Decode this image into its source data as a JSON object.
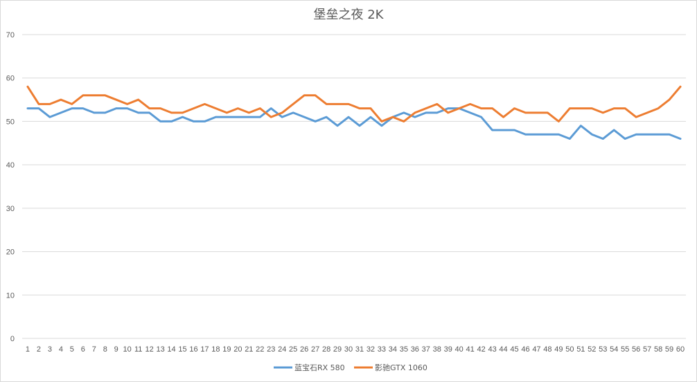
{
  "chart_data": {
    "type": "line",
    "title": "堡垒之夜 2K",
    "xlabel": "",
    "ylabel": "",
    "ylim": [
      0,
      70
    ],
    "yticks": [
      0,
      10,
      20,
      30,
      40,
      50,
      60,
      70
    ],
    "grid": true,
    "legend_position": "bottom",
    "x": [
      1,
      2,
      3,
      4,
      5,
      6,
      7,
      8,
      9,
      10,
      11,
      12,
      13,
      14,
      15,
      16,
      17,
      18,
      19,
      20,
      21,
      22,
      23,
      24,
      25,
      26,
      27,
      28,
      29,
      30,
      31,
      32,
      33,
      34,
      35,
      36,
      37,
      38,
      39,
      40,
      41,
      42,
      43,
      44,
      45,
      46,
      47,
      48,
      49,
      50,
      51,
      52,
      53,
      54,
      55,
      56,
      57,
      58,
      59,
      60
    ],
    "series": [
      {
        "name": "蓝宝石RX 580",
        "color": "#5b9bd5",
        "values": [
          53,
          53,
          51,
          52,
          53,
          53,
          52,
          52,
          53,
          53,
          52,
          52,
          50,
          50,
          51,
          50,
          50,
          51,
          51,
          51,
          51,
          51,
          53,
          51,
          52,
          51,
          50,
          51,
          49,
          51,
          49,
          51,
          49,
          51,
          52,
          51,
          52,
          52,
          53,
          53,
          52,
          51,
          48,
          48,
          48,
          47,
          47,
          47,
          47,
          46,
          49,
          47,
          46,
          48,
          46,
          47,
          47,
          47,
          47,
          46
        ]
      },
      {
        "name": "影驰GTX 1060",
        "color": "#ed7d31",
        "values": [
          58,
          54,
          54,
          55,
          54,
          56,
          56,
          56,
          55,
          54,
          55,
          53,
          53,
          52,
          52,
          53,
          54,
          53,
          52,
          53,
          52,
          53,
          51,
          52,
          54,
          56,
          56,
          54,
          54,
          54,
          53,
          53,
          50,
          51,
          50,
          52,
          53,
          54,
          52,
          53,
          54,
          53,
          53,
          51,
          53,
          52,
          52,
          52,
          50,
          53,
          53,
          53,
          52,
          53,
          53,
          51,
          52,
          53,
          55,
          58
        ]
      }
    ]
  }
}
